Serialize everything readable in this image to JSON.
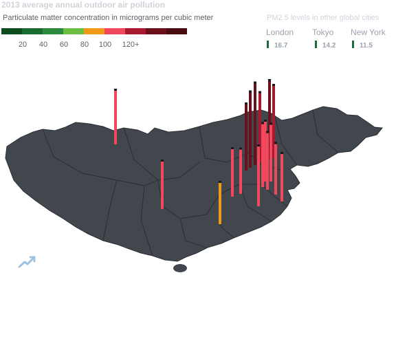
{
  "header": {
    "title": "2013 average annual outdoor air pollution",
    "subtitle": "Particulate matter concentration in micrograms per cubic meter"
  },
  "legend": {
    "colors": [
      "#0b4d1e",
      "#1a6b2f",
      "#2a8a3e",
      "#6cbf43",
      "#f29a18",
      "#f0485c",
      "#a8182e",
      "#6b0f1a",
      "#4a0a12"
    ],
    "ticks": [
      "20",
      "40",
      "60",
      "80",
      "100",
      "120+"
    ]
  },
  "comparison": {
    "title": "PM2.5 levels in other global cities",
    "cities": [
      {
        "name": "London",
        "value": "16.7"
      },
      {
        "name": "Tokyo",
        "value": "14.2"
      },
      {
        "name": "New York",
        "value": "11.5"
      }
    ]
  },
  "map_data": {
    "region": "China",
    "province_fill": "#42474e",
    "border_color": "#2a2e33",
    "spikes": [
      {
        "pm25": 90,
        "color": "#f0485c"
      },
      {
        "pm25": 80,
        "color": "#f0485c"
      },
      {
        "pm25": 70,
        "color": "#f29a18"
      },
      {
        "pm25": 80,
        "color": "#f0485c"
      },
      {
        "pm25": 110,
        "color": "#6b0f1a"
      },
      {
        "pm25": 125,
        "color": "#6b0f1a"
      },
      {
        "pm25": 135,
        "color": "#6b0f1a"
      },
      {
        "pm25": 115,
        "color": "#a8182e"
      },
      {
        "pm25": 130,
        "color": "#6b0f1a"
      },
      {
        "pm25": 120,
        "color": "#a8182e"
      },
      {
        "pm25": 100,
        "color": "#f0485c"
      },
      {
        "pm25": 105,
        "color": "#f0485c"
      },
      {
        "pm25": 100,
        "color": "#f0485c"
      },
      {
        "pm25": 95,
        "color": "#f0485c"
      },
      {
        "pm25": 95,
        "color": "#f0485c"
      },
      {
        "pm25": 85,
        "color": "#f0485c"
      },
      {
        "pm25": 80,
        "color": "#f0485c"
      },
      {
        "pm25": 75,
        "color": "#f0485c"
      }
    ]
  }
}
